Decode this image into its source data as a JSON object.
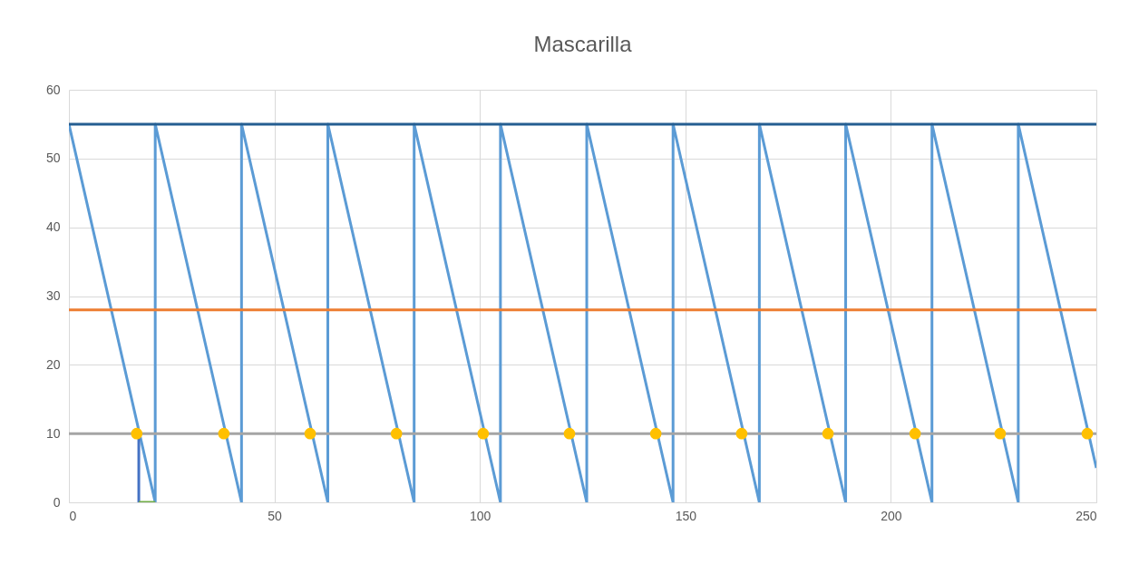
{
  "chart_data": {
    "type": "line",
    "title": "Mascarilla",
    "xlim": [
      0,
      250
    ],
    "xticks": [
      0,
      50,
      100,
      150,
      200,
      250
    ],
    "ylim": [
      0,
      60
    ],
    "yticks": [
      0,
      10,
      20,
      30,
      40,
      50,
      60
    ],
    "grid": true,
    "marker": "none",
    "series": [
      {
        "color": "#5b9bd5",
        "x": [
          0,
          21,
          21,
          42,
          42,
          63,
          63,
          84,
          84,
          105,
          105,
          126,
          126,
          147,
          147,
          168,
          168,
          189,
          189,
          210,
          210,
          231,
          231,
          250
        ],
        "values": [
          55,
          0,
          55,
          0,
          55,
          0,
          55,
          0,
          55,
          0,
          55,
          0,
          55,
          0,
          55,
          0,
          55,
          0,
          55,
          0,
          55,
          0,
          55,
          5
        ]
      },
      {
        "color": "#255e91",
        "x": [
          0,
          250
        ],
        "values": [
          55,
          55
        ]
      },
      {
        "color": "#ed7d31",
        "x": [
          0,
          250
        ],
        "values": [
          28,
          28
        ]
      },
      {
        "color": "#a5a5a5",
        "x": [
          0,
          250
        ],
        "values": [
          10,
          10
        ]
      },
      {
        "color": "#4472c4",
        "x": [
          17,
          17
        ],
        "values": [
          0,
          10
        ]
      },
      {
        "color": "#70ad47",
        "x": [
          17,
          21
        ],
        "values": [
          0,
          0
        ]
      },
      {
        "type": "scatter",
        "marker": "circle",
        "color": "#ffc000",
        "x": [
          16.5,
          37.7,
          58.7,
          79.7,
          100.8,
          121.8,
          142.8,
          163.7,
          184.7,
          205.9,
          226.6,
          247.8
        ],
        "values": [
          10,
          10,
          10,
          10,
          10,
          10,
          10,
          10,
          10,
          10,
          10,
          10
        ]
      }
    ]
  }
}
